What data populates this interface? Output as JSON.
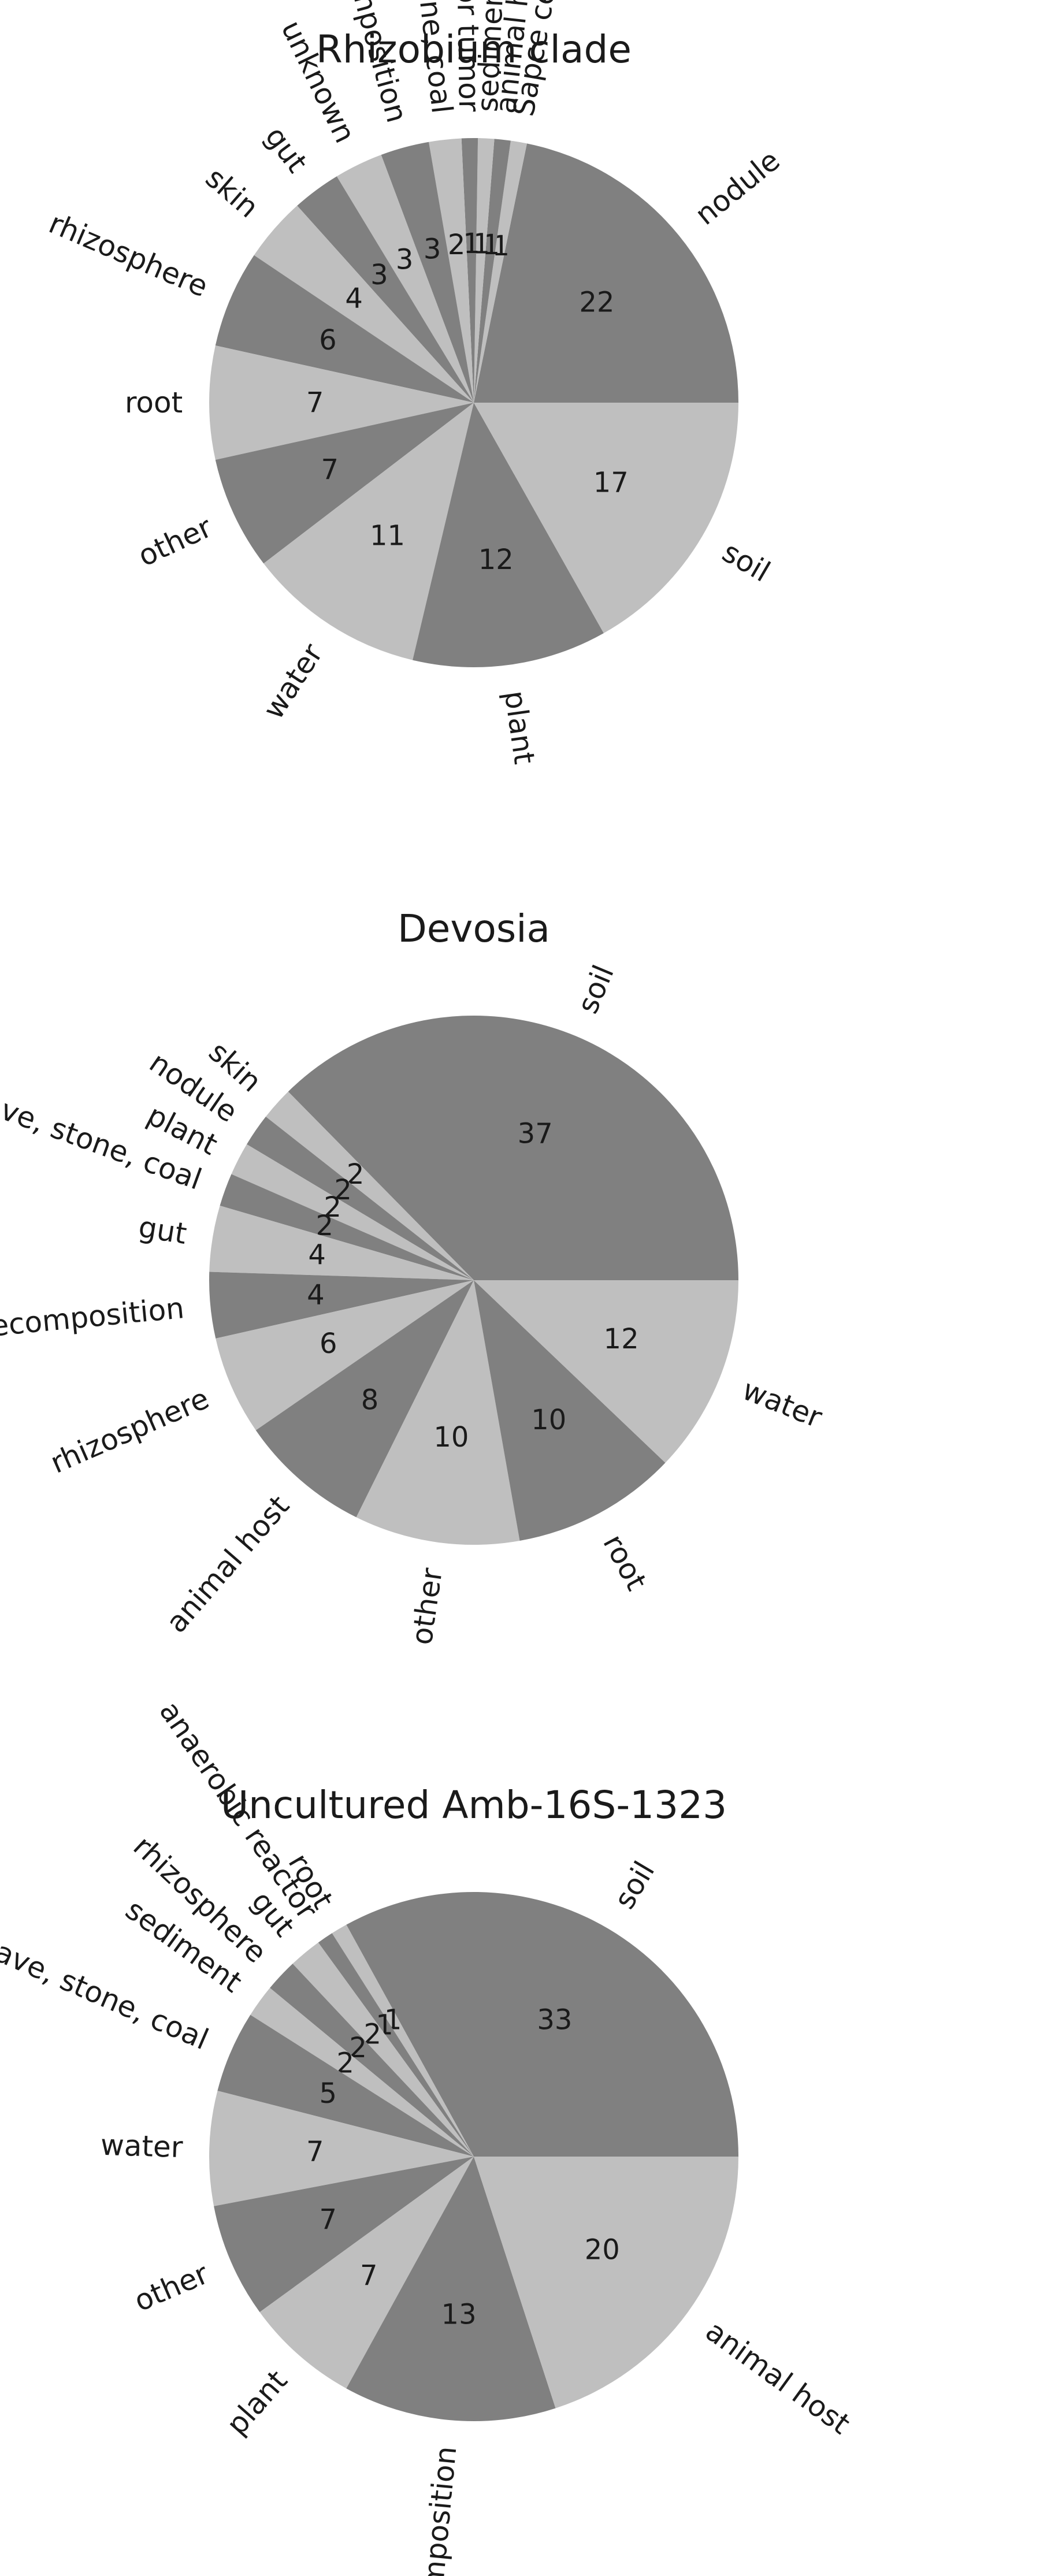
{
  "chart_data": [
    {
      "type": "pie",
      "title": "Rhizobium clade",
      "categories": [
        "nodule",
        "Sapce center",
        "animal host",
        "sediment",
        "gall or tumor",
        "cave, stone, coal",
        "decomposition",
        "unknown",
        "gut",
        "skin",
        "rhizosphere",
        "root",
        "other",
        "water",
        "plant",
        "soil"
      ],
      "values": [
        22,
        1,
        1,
        1,
        1,
        2,
        3,
        3,
        3,
        4,
        6,
        7,
        7,
        11,
        12,
        17
      ],
      "colors": [
        "#808080",
        "#bfbfbf"
      ],
      "start_angle_deg": 0,
      "direction": "counterclockwise",
      "rotated_labels": true
    },
    {
      "type": "pie",
      "title": "Devosia",
      "categories": [
        "soil",
        "skin",
        "nodule",
        "plant",
        "cave, stone, coal",
        "gut",
        "decomposition",
        "rhizosphere",
        "animal host",
        "other",
        "root",
        "water"
      ],
      "values": [
        37,
        2,
        2,
        2,
        2,
        4,
        4,
        6,
        8,
        10,
        10,
        12
      ],
      "colors": [
        "#808080",
        "#bfbfbf"
      ],
      "start_angle_deg": 0,
      "direction": "counterclockwise",
      "rotated_labels": true
    },
    {
      "type": "pie",
      "title": "Uncultured Amb-16S-1323",
      "categories": [
        "soil",
        "root",
        "anaerobic reactor",
        "gut",
        "rhizosphere",
        "sediment",
        "cave, stone, coal",
        "water",
        "other",
        "plant",
        "decomposition",
        "animal host"
      ],
      "values": [
        33,
        1,
        1,
        2,
        2,
        2,
        5,
        7,
        7,
        7,
        13,
        20
      ],
      "colors": [
        "#808080",
        "#bfbfbf"
      ],
      "start_angle_deg": 0,
      "direction": "counterclockwise",
      "rotated_labels": true
    }
  ]
}
